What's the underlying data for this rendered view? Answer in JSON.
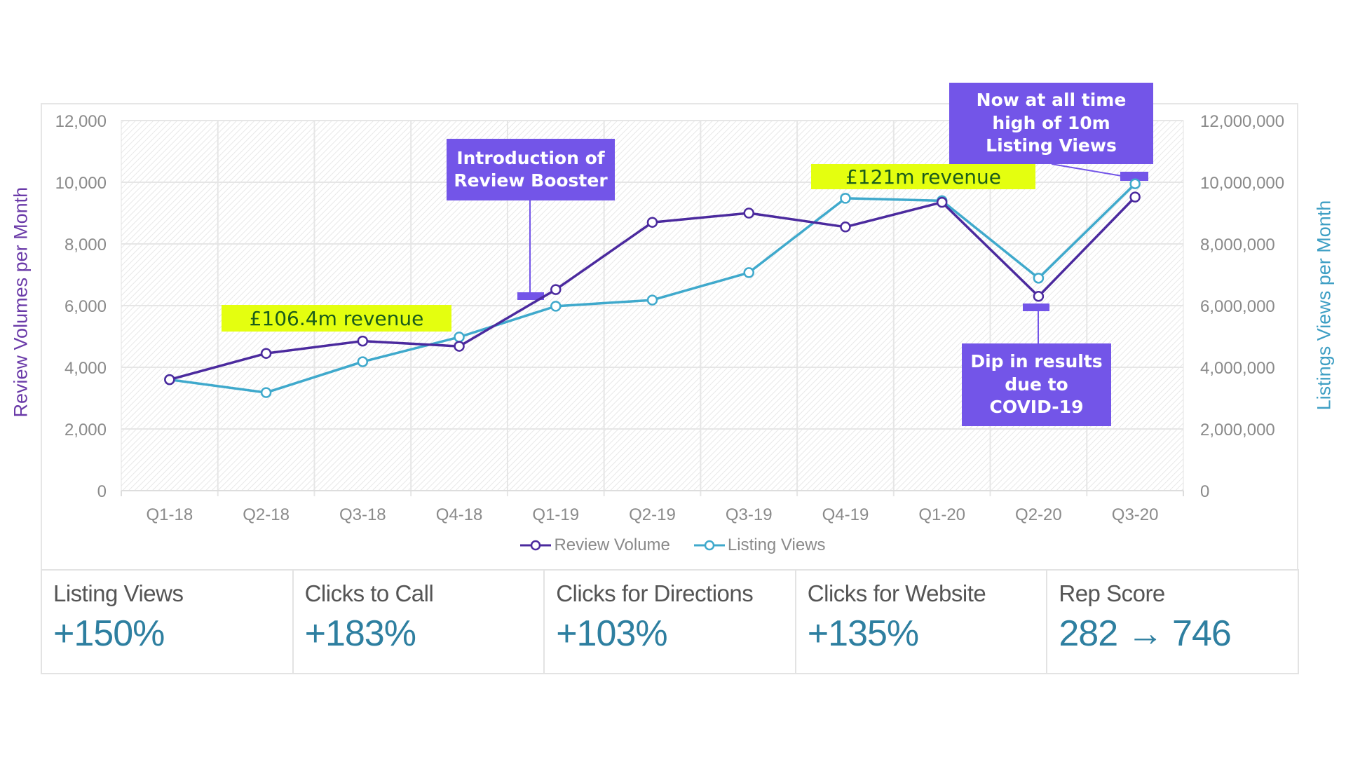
{
  "chart_data": {
    "type": "line",
    "title": "",
    "categories": [
      "Q1-18",
      "Q2-18",
      "Q3-18",
      "Q4-18",
      "Q1-19",
      "Q2-19",
      "Q3-19",
      "Q4-19",
      "Q1-20",
      "Q2-20",
      "Q3-20"
    ],
    "series": [
      {
        "name": "Review Volume",
        "axis": "left",
        "color": "#4b2a9e",
        "values": [
          3600,
          4450,
          4850,
          4680,
          6520,
          8700,
          9000,
          8550,
          9350,
          6300,
          9520
        ]
      },
      {
        "name": "Listing Views",
        "axis": "right",
        "color": "#3fa9cc",
        "values": [
          3600000,
          3180000,
          4180000,
          4980000,
          5980000,
          6180000,
          7070000,
          9480000,
          9400000,
          6890000,
          9950000
        ]
      }
    ],
    "ylabel": "Review Volumes per Month",
    "y2label": "Listings Views per Month",
    "ylim": [
      0,
      12000
    ],
    "y2lim": [
      0,
      12000000
    ],
    "yticks": [
      "0",
      "2,000",
      "4,000",
      "6,000",
      "8,000",
      "10,000",
      "12,000"
    ],
    "y2ticks": [
      "0",
      "2,000,000",
      "4,000,000",
      "6,000,000",
      "8,000,000",
      "10,000,000",
      "12,000,000"
    ],
    "grid": true,
    "legend_position": "bottom",
    "annotations": [
      {
        "id": "review-booster",
        "text": "Introduction of Review Booster",
        "category": "Q1-19"
      },
      {
        "id": "all-time-high",
        "text": "Now at all time high of 10m Listing Views",
        "category": "Q3-20"
      },
      {
        "id": "covid-dip",
        "text": "Dip in results due to COVID-19",
        "category": "Q2-20"
      },
      {
        "id": "revenue-2018",
        "text": "£106.4m revenue"
      },
      {
        "id": "revenue-2019",
        "text": "£121m revenue"
      }
    ]
  },
  "axes": {
    "left_title": "Review Volumes per Month",
    "right_title": "Listings Views per Month",
    "left_color": "#6a3aa8",
    "right_color": "#3f9fc4"
  },
  "annotations": {
    "review_booster": "Introduction of Review Booster",
    "all_time_high": "Now at all time high of 10m Listing Views",
    "covid_dip": "Dip in results due to COVID-19",
    "revenue_1": "£106.4m revenue",
    "revenue_2": "£121m revenue"
  },
  "legend": {
    "review_volume": "Review Volume",
    "listing_views": "Listing Views"
  },
  "kpis": [
    {
      "label": "Listing Views",
      "value": "+150%"
    },
    {
      "label": "Clicks to Call",
      "value": "+183%"
    },
    {
      "label": "Clicks for Directions",
      "value": "+103%"
    },
    {
      "label": "Clicks for Website",
      "value": "+135%"
    },
    {
      "label": "Rep Score",
      "value": "282 → 746"
    }
  ],
  "colors": {
    "annotation_box": "#7355e8",
    "revenue_highlight": "#e4ff0f",
    "revenue_text": "#1a5c1a",
    "kpi_value": "#2e7fa0"
  }
}
